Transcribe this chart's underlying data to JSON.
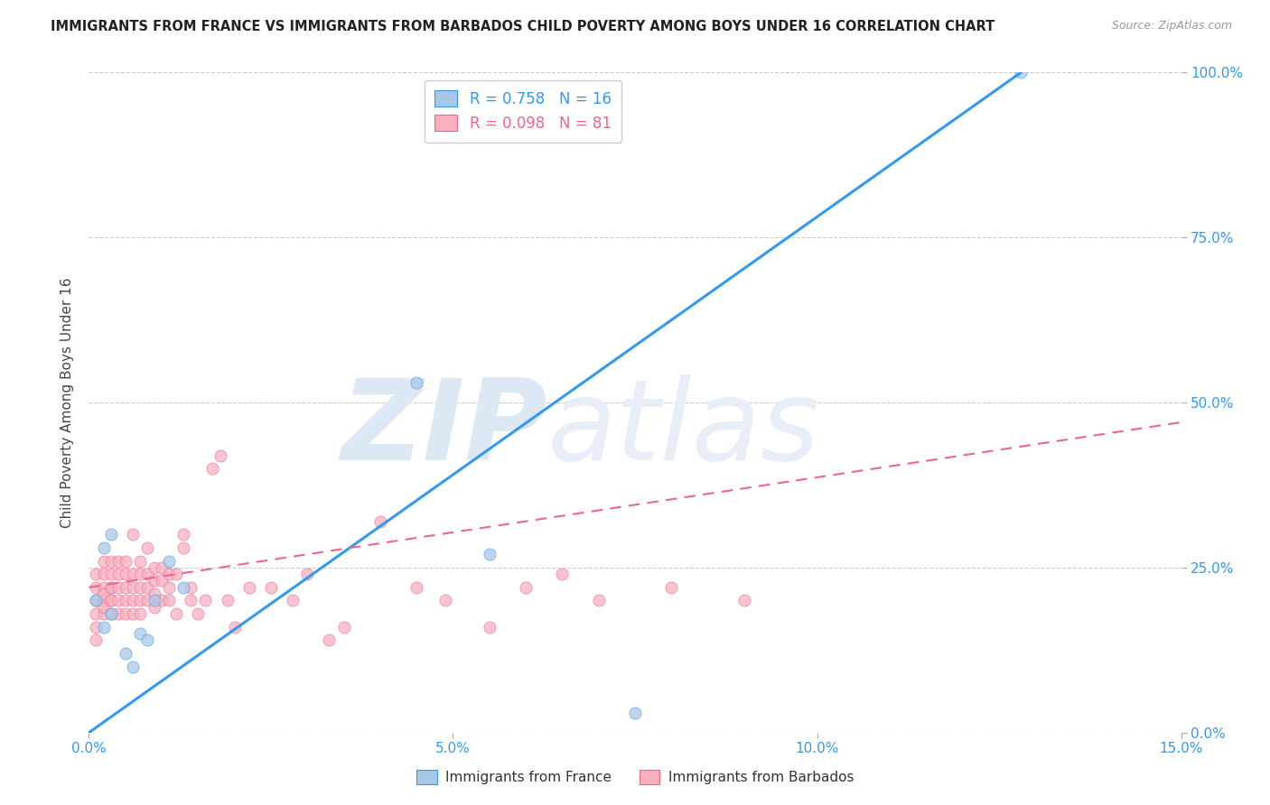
{
  "title": "IMMIGRANTS FROM FRANCE VS IMMIGRANTS FROM BARBADOS CHILD POVERTY AMONG BOYS UNDER 16 CORRELATION CHART",
  "source": "Source: ZipAtlas.com",
  "ylabel": "Child Poverty Among Boys Under 16",
  "xlim": [
    0.0,
    0.15
  ],
  "ylim": [
    0.0,
    1.0
  ],
  "xticks": [
    0.0,
    0.05,
    0.1,
    0.15
  ],
  "xticklabels": [
    "0.0%",
    "5.0%",
    "10.0%",
    "15.0%"
  ],
  "yticks": [
    0.0,
    0.25,
    0.5,
    0.75,
    1.0
  ],
  "yticklabels_right": [
    "0.0%",
    "25.0%",
    "50.0%",
    "75.0%",
    "100.0%"
  ],
  "R_france": 0.758,
  "N_france": 16,
  "R_barbados": 0.098,
  "N_barbados": 81,
  "france_color": "#a8c8e8",
  "france_line_color": "#3399ee",
  "barbados_color": "#f8b0c0",
  "barbados_line_color": "#ee6688",
  "background_color": "#ffffff",
  "grid_color": "#cccccc",
  "watermark_zip": "ZIP",
  "watermark_atlas": "atlas",
  "watermark_color": "#dde8f5",
  "france_x": [
    0.001,
    0.002,
    0.002,
    0.003,
    0.003,
    0.005,
    0.006,
    0.007,
    0.008,
    0.009,
    0.011,
    0.013,
    0.045,
    0.055,
    0.075,
    0.128
  ],
  "france_y": [
    0.2,
    0.16,
    0.28,
    0.18,
    0.3,
    0.12,
    0.1,
    0.15,
    0.14,
    0.2,
    0.26,
    0.22,
    0.53,
    0.27,
    0.03,
    1.0
  ],
  "france_line_x0": 0.0,
  "france_line_y0": 0.0,
  "france_line_x1": 0.128,
  "france_line_y1": 1.0,
  "barbados_line_x0": 0.0,
  "barbados_line_y0": 0.22,
  "barbados_line_x1": 0.15,
  "barbados_line_y1": 0.47,
  "barbados_x": [
    0.001,
    0.001,
    0.001,
    0.001,
    0.001,
    0.001,
    0.002,
    0.002,
    0.002,
    0.002,
    0.002,
    0.002,
    0.002,
    0.003,
    0.003,
    0.003,
    0.003,
    0.003,
    0.003,
    0.003,
    0.004,
    0.004,
    0.004,
    0.004,
    0.004,
    0.005,
    0.005,
    0.005,
    0.005,
    0.005,
    0.006,
    0.006,
    0.006,
    0.006,
    0.006,
    0.007,
    0.007,
    0.007,
    0.007,
    0.007,
    0.008,
    0.008,
    0.008,
    0.008,
    0.009,
    0.009,
    0.009,
    0.009,
    0.01,
    0.01,
    0.01,
    0.011,
    0.011,
    0.011,
    0.012,
    0.012,
    0.013,
    0.013,
    0.014,
    0.014,
    0.015,
    0.016,
    0.017,
    0.018,
    0.019,
    0.02,
    0.022,
    0.025,
    0.028,
    0.03,
    0.033,
    0.035,
    0.04,
    0.045,
    0.049,
    0.055,
    0.06,
    0.065,
    0.07,
    0.08,
    0.09
  ],
  "barbados_y": [
    0.2,
    0.22,
    0.24,
    0.18,
    0.16,
    0.14,
    0.2,
    0.22,
    0.18,
    0.24,
    0.26,
    0.19,
    0.21,
    0.22,
    0.2,
    0.24,
    0.18,
    0.26,
    0.2,
    0.22,
    0.22,
    0.2,
    0.24,
    0.18,
    0.26,
    0.22,
    0.2,
    0.24,
    0.18,
    0.26,
    0.22,
    0.2,
    0.24,
    0.3,
    0.18,
    0.22,
    0.24,
    0.2,
    0.18,
    0.26,
    0.22,
    0.2,
    0.24,
    0.28,
    0.23,
    0.21,
    0.19,
    0.25,
    0.25,
    0.23,
    0.2,
    0.22,
    0.2,
    0.24,
    0.24,
    0.18,
    0.28,
    0.3,
    0.2,
    0.22,
    0.18,
    0.2,
    0.4,
    0.42,
    0.2,
    0.16,
    0.22,
    0.22,
    0.2,
    0.24,
    0.14,
    0.16,
    0.32,
    0.22,
    0.2,
    0.16,
    0.22,
    0.24,
    0.2,
    0.22,
    0.2
  ]
}
